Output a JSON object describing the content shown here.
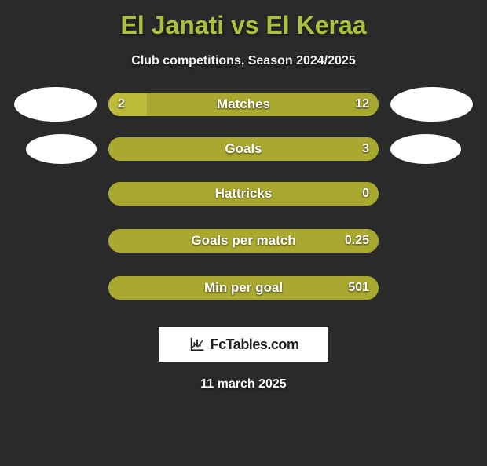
{
  "title": "El Janati vs El Keraa",
  "subtitle": "Club competitions, Season 2024/2025",
  "date": "11 march 2025",
  "watermark": "FcTables.com",
  "colors": {
    "background": "#2a2a2a",
    "accent_left": "#a9a82f",
    "accent_right": "#a9a82f",
    "bar_empty": "#a9a82f",
    "title_color": "#a8c23f",
    "text_color": "#ffffff"
  },
  "rows": [
    {
      "label": "Matches",
      "left_value": "2",
      "right_value": "12",
      "left_pct": 14.3,
      "right_pct": 85.7,
      "left_color": "#bdbc3a",
      "right_color": "#a9a82f",
      "show_avatars": "large"
    },
    {
      "label": "Goals",
      "left_value": "",
      "right_value": "3",
      "left_pct": 0,
      "right_pct": 100,
      "left_color": "#bdbc3a",
      "right_color": "#a9a82f",
      "show_avatars": "small"
    },
    {
      "label": "Hattricks",
      "left_value": "",
      "right_value": "0",
      "left_pct": 0,
      "right_pct": 100,
      "left_color": "#bdbc3a",
      "right_color": "#a9a82f",
      "show_avatars": "none"
    },
    {
      "label": "Goals per match",
      "left_value": "",
      "right_value": "0.25",
      "left_pct": 0,
      "right_pct": 100,
      "left_color": "#bdbc3a",
      "right_color": "#a9a82f",
      "show_avatars": "none"
    },
    {
      "label": "Min per goal",
      "left_value": "",
      "right_value": "501",
      "left_pct": 0,
      "right_pct": 100,
      "left_color": "#bdbc3a",
      "right_color": "#a9a82f",
      "show_avatars": "none"
    }
  ]
}
